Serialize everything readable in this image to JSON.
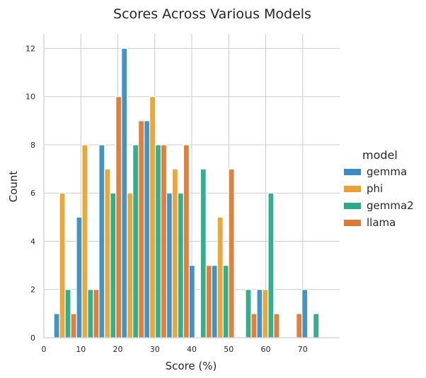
{
  "chart_data": {
    "type": "bar",
    "title": "Scores Across Various Models",
    "xlabel": "Score (%)",
    "ylabel": "Count",
    "xlim": [
      0,
      80
    ],
    "ylim": [
      0,
      12.6
    ],
    "xticks": [
      0,
      10,
      20,
      30,
      40,
      50,
      60,
      70
    ],
    "yticks": [
      0,
      2,
      4,
      6,
      8,
      10,
      12
    ],
    "grid": true,
    "legend": {
      "title": "model",
      "position": "right"
    },
    "bin_edges": [
      2.7,
      8.8,
      14.9,
      21.0,
      27.1,
      33.2,
      39.3,
      45.4,
      51.5,
      57.6,
      63.7,
      69.8,
      75.9
    ],
    "series": [
      {
        "name": "gemma",
        "color": "#3a8dc4",
        "values": [
          1,
          5,
          8,
          12,
          9,
          6,
          3,
          3,
          0,
          2,
          0,
          2
        ]
      },
      {
        "name": "phi",
        "color": "#e8a232",
        "values": [
          6,
          8,
          7,
          6,
          10,
          7,
          0,
          5,
          0,
          2,
          0,
          0
        ]
      },
      {
        "name": "gemma2",
        "color": "#2aaa86",
        "values": [
          2,
          2,
          6,
          8,
          8,
          6,
          7,
          3,
          2,
          6,
          0,
          1
        ]
      },
      {
        "name": "llama",
        "color": "#dc7a35",
        "values": [
          1,
          2,
          10,
          9,
          8,
          8,
          3,
          7,
          1,
          1,
          1,
          0
        ]
      }
    ]
  }
}
